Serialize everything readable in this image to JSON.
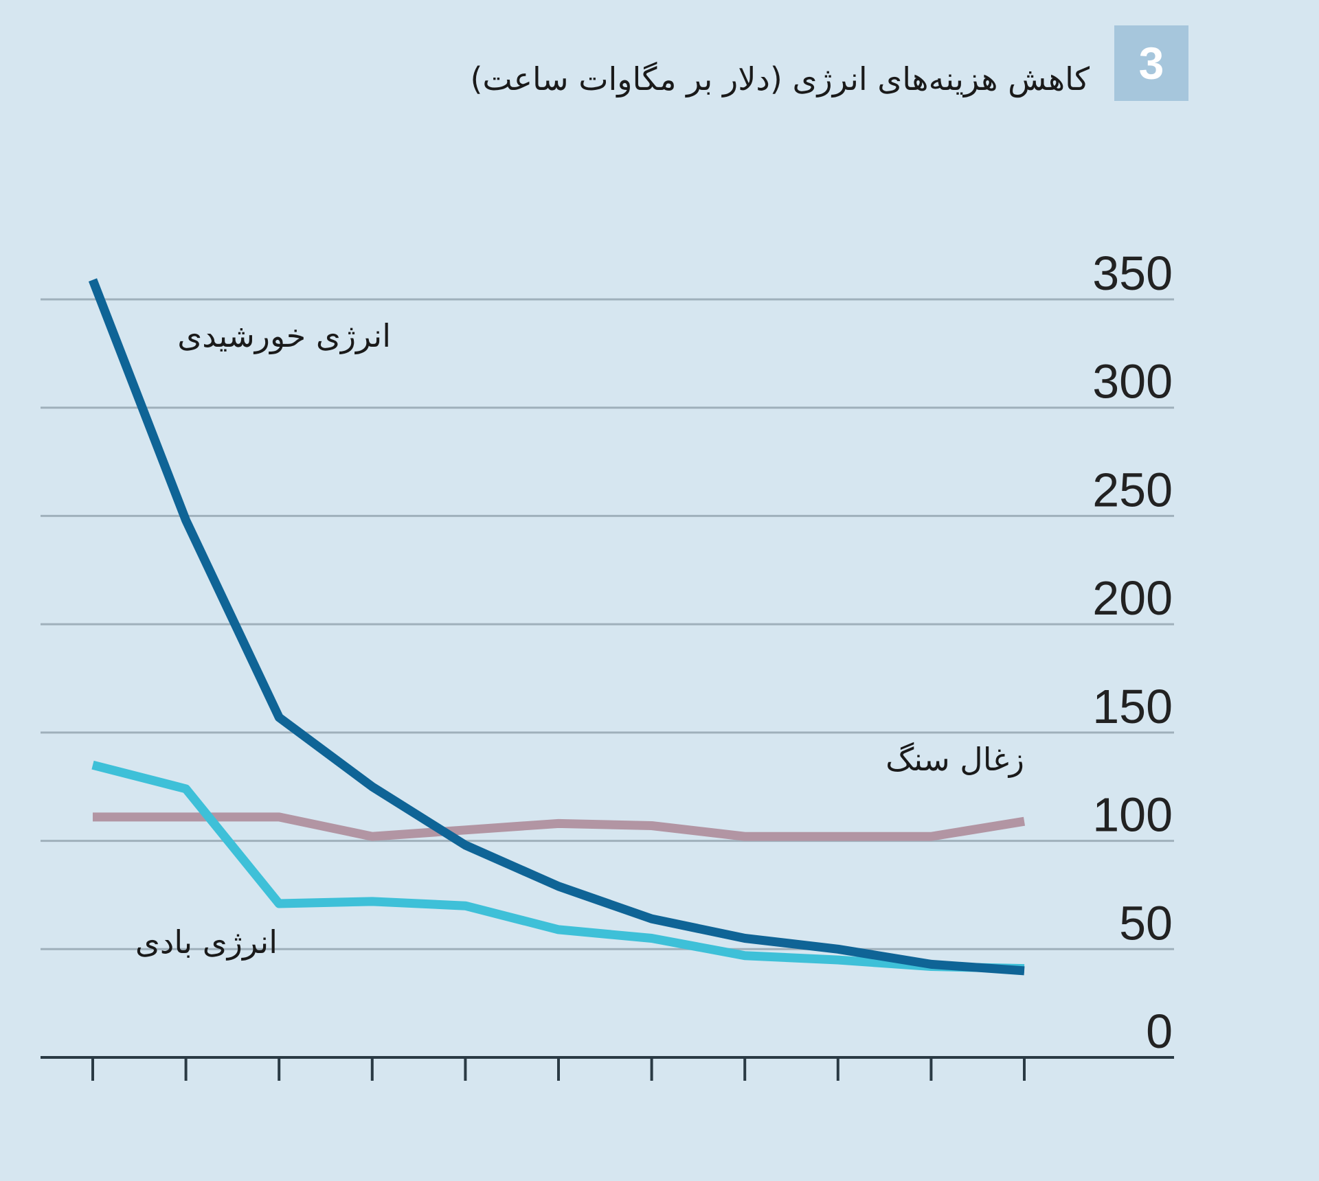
{
  "badge": "3",
  "chart_data": {
    "type": "line",
    "title": "کاهش هزینه‌های انرژی (دلار بر مگاوات ساعت)",
    "xlabel": "",
    "ylabel": "",
    "x": [
      0,
      1,
      2,
      3,
      4,
      5,
      6,
      7,
      8,
      9,
      10
    ],
    "ylim": [
      0,
      350
    ],
    "yticks": [
      "0",
      "50",
      "100",
      "150",
      "200",
      "250",
      "300",
      "350"
    ],
    "grid": true,
    "series": [
      {
        "name": "انرژی خورشیدی",
        "color": "#0f6496",
        "values": [
          359,
          248,
          157,
          125,
          98,
          79,
          64,
          55,
          50,
          43,
          40
        ]
      },
      {
        "name": "انرژی بادی",
        "color": "#3ec0d8",
        "values": [
          135,
          124,
          71,
          72,
          70,
          59,
          55,
          47,
          45,
          42,
          41
        ]
      },
      {
        "name": "زغال سنگ",
        "color": "#b295a3",
        "values": [
          111,
          111,
          111,
          102,
          105,
          108,
          107,
          102,
          102,
          102,
          109
        ]
      }
    ]
  }
}
